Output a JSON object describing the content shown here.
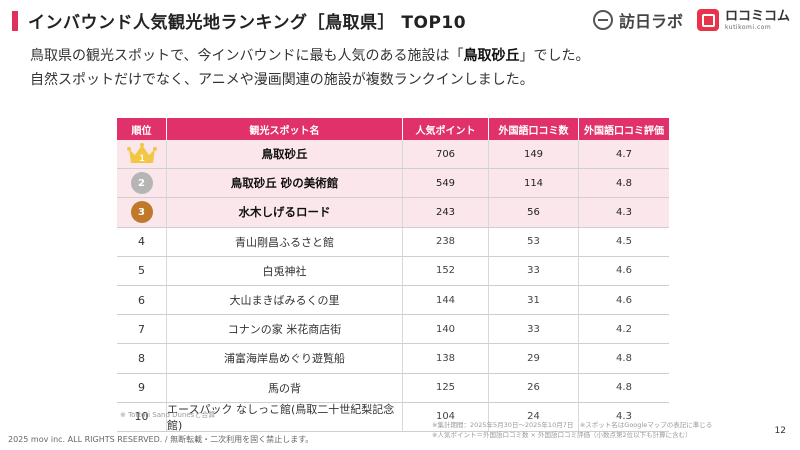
{
  "title": "インバウンド人気観光地ランキング［鳥取県］ TOP10",
  "logos": {
    "brand_a": "訪日ラボ",
    "brand_b_main": "ロコミコム",
    "brand_b_sub": "kutikomi.com"
  },
  "lead": {
    "line1_before": "鳥取県の観光スポットで、今インバウンドに最も人気のある施設は「",
    "line1_highlight": "鳥取砂丘",
    "line1_after": "」でした。",
    "line2": "自然スポットだけでなく、アニメや漫画関連の施設が複数ランクインしました。"
  },
  "table": {
    "headers": [
      "順位",
      "観光スポット名",
      "人気ポイント",
      "外国語口コミ数",
      "外国語口コミ評価"
    ],
    "rows": [
      {
        "rank": "1",
        "name": "鳥取砂丘",
        "points": "706",
        "reviews": "149",
        "rating": "4.7"
      },
      {
        "rank": "2",
        "name": "鳥取砂丘 砂の美術館",
        "points": "549",
        "reviews": "114",
        "rating": "4.8"
      },
      {
        "rank": "3",
        "name": "水木しげるロード",
        "points": "243",
        "reviews": "56",
        "rating": "4.3"
      },
      {
        "rank": "4",
        "name": "青山剛昌ふるさと館",
        "points": "238",
        "reviews": "53",
        "rating": "4.5"
      },
      {
        "rank": "5",
        "name": "白兎神社",
        "points": "152",
        "reviews": "33",
        "rating": "4.6"
      },
      {
        "rank": "6",
        "name": "大山まきばみるくの里",
        "points": "144",
        "reviews": "31",
        "rating": "4.6"
      },
      {
        "rank": "7",
        "name": "コナンの家 米花商店街",
        "points": "140",
        "reviews": "33",
        "rating": "4.2"
      },
      {
        "rank": "8",
        "name": "浦富海岸島めぐり遊覧船",
        "points": "138",
        "reviews": "29",
        "rating": "4.8"
      },
      {
        "rank": "9",
        "name": "馬の背",
        "points": "125",
        "reviews": "26",
        "rating": "4.8"
      },
      {
        "rank": "10",
        "name": "エースパック なしっこ館(鳥取二十世紀梨記念館)",
        "points": "104",
        "reviews": "24",
        "rating": "4.3"
      }
    ]
  },
  "colors": {
    "accent": "#e1316b",
    "highlight_row": "#fbe6ec",
    "gold": "#f2c744",
    "silver": "#b5b5b5",
    "bronze": "#c0782b"
  },
  "footnote_left": "※ Tottori Sand Dunesと合算",
  "footnote_right_1": "※集計期間：2025年5月30日〜2025年10月7日　※スポット名はGoogleマップの表記に準じる",
  "footnote_right_2": "※人気ポイント＝外国語口コミ数 × 外国語口コミ評価（小数点第2位以下も計算に含む）",
  "page_number": "12",
  "copyright": "2025 mov inc. ALL RIGHTS RESERVED. / 無断転載・二次利用を固く禁止します。"
}
